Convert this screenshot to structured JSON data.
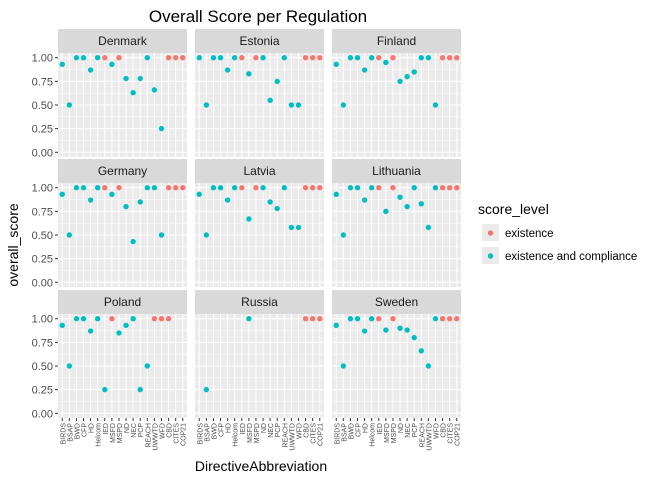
{
  "chart_data": {
    "type": "scatter",
    "title": "Overall Score per Regulation",
    "xlabel": "DirectiveAbbreviation",
    "ylabel": "overall_score",
    "ylim": [
      -0.05,
      1.05
    ],
    "yticks": [
      "0.00",
      "0.25",
      "0.50",
      "0.75",
      "1.00"
    ],
    "categories": [
      "BIRDS",
      "BSAP",
      "BWD",
      "CFP",
      "HD",
      "Helcom",
      "IED",
      "MSFD",
      "MSPD",
      "ND",
      "NEC",
      "PCP",
      "REACH",
      "UWWTD",
      "WFD",
      "CBD",
      "CITES",
      "COP21"
    ],
    "grid": true,
    "facet_layout": "3x3",
    "legend": {
      "title": "score_level",
      "position": "right",
      "entries": [
        {
          "label": "existence",
          "color": "#F8766D"
        },
        {
          "label": "existence and compliance",
          "color": "#00BFC4"
        }
      ]
    },
    "colors": {
      "existence": "#F8766D",
      "existence and compliance": "#00BFC4",
      "panel_bg": "#EBEBEB",
      "strip_bg": "#D9D9D9",
      "grid": "#FFFFFF"
    },
    "panels": [
      {
        "name": "Denmark",
        "points": [
          [
            "BIRDS",
            0.93,
            "existence and compliance"
          ],
          [
            "BSAP",
            0.5,
            "existence and compliance"
          ],
          [
            "BWD",
            1.0,
            "existence and compliance"
          ],
          [
            "CFP",
            1.0,
            "existence and compliance"
          ],
          [
            "HD",
            0.87,
            "existence and compliance"
          ],
          [
            "Helcom",
            1.0,
            "existence and compliance"
          ],
          [
            "IED",
            1.0,
            "existence"
          ],
          [
            "MSFD",
            0.93,
            "existence and compliance"
          ],
          [
            "MSPD",
            1.0,
            "existence"
          ],
          [
            "ND",
            0.78,
            "existence and compliance"
          ],
          [
            "NEC",
            0.63,
            "existence and compliance"
          ],
          [
            "PCP",
            0.78,
            "existence and compliance"
          ],
          [
            "REACH",
            1.0,
            "existence and compliance"
          ],
          [
            "UWWTD",
            0.66,
            "existence and compliance"
          ],
          [
            "WFD",
            0.25,
            "existence and compliance"
          ],
          [
            "CBD",
            1.0,
            "existence"
          ],
          [
            "CITES",
            1.0,
            "existence"
          ],
          [
            "COP21",
            1.0,
            "existence"
          ]
        ]
      },
      {
        "name": "Estonia",
        "points": [
          [
            "BIRDS",
            1.0,
            "existence and compliance"
          ],
          [
            "BSAP",
            0.5,
            "existence and compliance"
          ],
          [
            "BWD",
            1.0,
            "existence and compliance"
          ],
          [
            "CFP",
            1.0,
            "existence and compliance"
          ],
          [
            "HD",
            0.87,
            "existence and compliance"
          ],
          [
            "Helcom",
            1.0,
            "existence and compliance"
          ],
          [
            "IED",
            1.0,
            "existence"
          ],
          [
            "MSFD",
            0.83,
            "existence and compliance"
          ],
          [
            "MSPD",
            1.0,
            "existence"
          ],
          [
            "ND",
            1.0,
            "existence and compliance"
          ],
          [
            "NEC",
            0.55,
            "existence and compliance"
          ],
          [
            "PCP",
            0.75,
            "existence and compliance"
          ],
          [
            "REACH",
            1.0,
            "existence and compliance"
          ],
          [
            "UWWTD",
            0.5,
            "existence and compliance"
          ],
          [
            "WFD",
            0.5,
            "existence and compliance"
          ],
          [
            "CBD",
            1.0,
            "existence"
          ],
          [
            "CITES",
            1.0,
            "existence"
          ],
          [
            "COP21",
            1.0,
            "existence"
          ]
        ]
      },
      {
        "name": "Finland",
        "points": [
          [
            "BIRDS",
            0.93,
            "existence and compliance"
          ],
          [
            "BSAP",
            0.5,
            "existence and compliance"
          ],
          [
            "BWD",
            1.0,
            "existence and compliance"
          ],
          [
            "CFP",
            1.0,
            "existence and compliance"
          ],
          [
            "HD",
            0.87,
            "existence and compliance"
          ],
          [
            "Helcom",
            1.0,
            "existence and compliance"
          ],
          [
            "IED",
            1.0,
            "existence"
          ],
          [
            "MSFD",
            0.95,
            "existence and compliance"
          ],
          [
            "MSPD",
            1.0,
            "existence"
          ],
          [
            "ND",
            0.75,
            "existence and compliance"
          ],
          [
            "NEC",
            0.8,
            "existence and compliance"
          ],
          [
            "PCP",
            0.85,
            "existence and compliance"
          ],
          [
            "REACH",
            1.0,
            "existence and compliance"
          ],
          [
            "UWWTD",
            1.0,
            "existence and compliance"
          ],
          [
            "WFD",
            0.5,
            "existence and compliance"
          ],
          [
            "CBD",
            1.0,
            "existence"
          ],
          [
            "CITES",
            1.0,
            "existence"
          ],
          [
            "COP21",
            1.0,
            "existence"
          ]
        ]
      },
      {
        "name": "Germany",
        "points": [
          [
            "BIRDS",
            0.93,
            "existence and compliance"
          ],
          [
            "BSAP",
            0.5,
            "existence and compliance"
          ],
          [
            "BWD",
            1.0,
            "existence and compliance"
          ],
          [
            "CFP",
            1.0,
            "existence and compliance"
          ],
          [
            "HD",
            0.87,
            "existence and compliance"
          ],
          [
            "Helcom",
            1.0,
            "existence and compliance"
          ],
          [
            "IED",
            1.0,
            "existence"
          ],
          [
            "MSFD",
            0.93,
            "existence and compliance"
          ],
          [
            "MSPD",
            1.0,
            "existence"
          ],
          [
            "ND",
            0.8,
            "existence and compliance"
          ],
          [
            "NEC",
            0.43,
            "existence and compliance"
          ],
          [
            "PCP",
            0.85,
            "existence and compliance"
          ],
          [
            "REACH",
            1.0,
            "existence and compliance"
          ],
          [
            "UWWTD",
            1.0,
            "existence and compliance"
          ],
          [
            "WFD",
            0.5,
            "existence and compliance"
          ],
          [
            "CBD",
            1.0,
            "existence"
          ],
          [
            "CITES",
            1.0,
            "existence"
          ],
          [
            "COP21",
            1.0,
            "existence"
          ]
        ]
      },
      {
        "name": "Latvia",
        "points": [
          [
            "BIRDS",
            0.93,
            "existence and compliance"
          ],
          [
            "BSAP",
            0.5,
            "existence and compliance"
          ],
          [
            "BWD",
            1.0,
            "existence and compliance"
          ],
          [
            "CFP",
            1.0,
            "existence and compliance"
          ],
          [
            "HD",
            0.87,
            "existence and compliance"
          ],
          [
            "Helcom",
            1.0,
            "existence and compliance"
          ],
          [
            "IED",
            1.0,
            "existence"
          ],
          [
            "MSFD",
            0.67,
            "existence and compliance"
          ],
          [
            "MSPD",
            1.0,
            "existence"
          ],
          [
            "ND",
            1.0,
            "existence and compliance"
          ],
          [
            "NEC",
            0.85,
            "existence and compliance"
          ],
          [
            "PCP",
            0.78,
            "existence and compliance"
          ],
          [
            "REACH",
            1.0,
            "existence and compliance"
          ],
          [
            "UWWTD",
            0.58,
            "existence and compliance"
          ],
          [
            "WFD",
            0.58,
            "existence and compliance"
          ],
          [
            "CBD",
            1.0,
            "existence"
          ],
          [
            "CITES",
            1.0,
            "existence"
          ],
          [
            "COP21",
            1.0,
            "existence"
          ]
        ]
      },
      {
        "name": "Lithuania",
        "points": [
          [
            "BIRDS",
            0.93,
            "existence and compliance"
          ],
          [
            "BSAP",
            0.5,
            "existence and compliance"
          ],
          [
            "BWD",
            1.0,
            "existence and compliance"
          ],
          [
            "CFP",
            1.0,
            "existence and compliance"
          ],
          [
            "HD",
            0.87,
            "existence and compliance"
          ],
          [
            "Helcom",
            1.0,
            "existence and compliance"
          ],
          [
            "IED",
            1.0,
            "existence"
          ],
          [
            "MSFD",
            0.75,
            "existence and compliance"
          ],
          [
            "MSPD",
            1.0,
            "existence"
          ],
          [
            "ND",
            0.9,
            "existence and compliance"
          ],
          [
            "NEC",
            0.8,
            "existence and compliance"
          ],
          [
            "PCP",
            1.0,
            "existence and compliance"
          ],
          [
            "REACH",
            0.83,
            "existence and compliance"
          ],
          [
            "UWWTD",
            0.58,
            "existence and compliance"
          ],
          [
            "WFD",
            1.0,
            "existence and compliance"
          ],
          [
            "CBD",
            1.0,
            "existence"
          ],
          [
            "CITES",
            1.0,
            "existence"
          ],
          [
            "COP21",
            1.0,
            "existence"
          ]
        ]
      },
      {
        "name": "Poland",
        "points": [
          [
            "BIRDS",
            0.93,
            "existence and compliance"
          ],
          [
            "BSAP",
            0.5,
            "existence and compliance"
          ],
          [
            "BWD",
            1.0,
            "existence and compliance"
          ],
          [
            "CFP",
            1.0,
            "existence and compliance"
          ],
          [
            "HD",
            0.87,
            "existence and compliance"
          ],
          [
            "Helcom",
            1.0,
            "existence and compliance"
          ],
          [
            "IED",
            0.25,
            "existence and compliance"
          ],
          [
            "MSFD",
            1.0,
            "existence"
          ],
          [
            "MSPD",
            0.85,
            "existence and compliance"
          ],
          [
            "ND",
            0.93,
            "existence and compliance"
          ],
          [
            "NEC",
            1.0,
            "existence and compliance"
          ],
          [
            "PCP",
            0.25,
            "existence and compliance"
          ],
          [
            "REACH",
            0.5,
            "existence and compliance"
          ],
          [
            "UWWTD",
            1.0,
            "existence"
          ],
          [
            "WFD",
            1.0,
            "existence"
          ],
          [
            "CBD",
            1.0,
            "existence"
          ]
        ]
      },
      {
        "name": "Russia",
        "points": [
          [
            "BSAP",
            0.25,
            "existence and compliance"
          ],
          [
            "MSFD",
            1.0,
            "existence and compliance"
          ],
          [
            "CBD",
            1.0,
            "existence"
          ],
          [
            "CITES",
            1.0,
            "existence"
          ],
          [
            "COP21",
            1.0,
            "existence"
          ]
        ]
      },
      {
        "name": "Sweden",
        "points": [
          [
            "BIRDS",
            0.93,
            "existence and compliance"
          ],
          [
            "BSAP",
            0.5,
            "existence and compliance"
          ],
          [
            "BWD",
            1.0,
            "existence and compliance"
          ],
          [
            "CFP",
            1.0,
            "existence and compliance"
          ],
          [
            "HD",
            0.87,
            "existence and compliance"
          ],
          [
            "Helcom",
            1.0,
            "existence and compliance"
          ],
          [
            "IED",
            1.0,
            "existence"
          ],
          [
            "MSFD",
            0.88,
            "existence and compliance"
          ],
          [
            "MSPD",
            1.0,
            "existence"
          ],
          [
            "ND",
            0.9,
            "existence and compliance"
          ],
          [
            "NEC",
            0.88,
            "existence and compliance"
          ],
          [
            "PCP",
            0.8,
            "existence and compliance"
          ],
          [
            "REACH",
            0.66,
            "existence and compliance"
          ],
          [
            "UWWTD",
            0.5,
            "existence and compliance"
          ],
          [
            "WFD",
            1.0,
            "existence and compliance"
          ],
          [
            "CBD",
            1.0,
            "existence"
          ],
          [
            "CITES",
            1.0,
            "existence"
          ],
          [
            "COP21",
            1.0,
            "existence"
          ]
        ]
      }
    ]
  }
}
